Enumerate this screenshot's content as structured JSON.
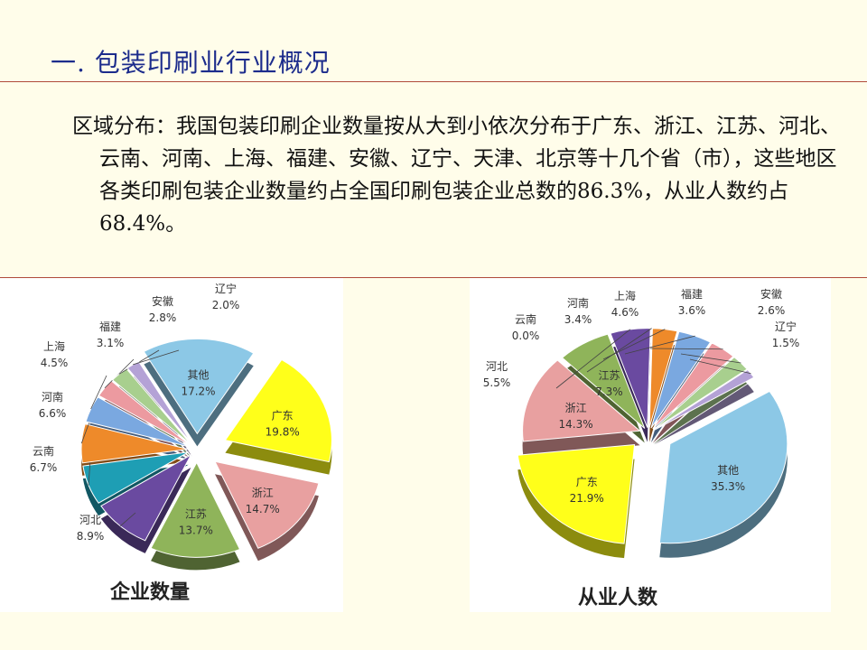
{
  "page": {
    "title": "一. 包装印刷业行业概况",
    "paragraph": "区域分布：我国包装印刷企业数量按从大到小依次分布于广东、浙江、江苏、河北、云南、河南、上海、福建、安徽、辽宁、天津、北京等十几个省（市），这些地区各类印刷包装企业数量约占全国印刷包装企业总数的86.3%，从业人数约占68.4%。"
  },
  "chart_data": [
    {
      "type": "pie",
      "title": "企业数量",
      "slices": [
        {
          "label": "其他",
          "value": 17.2,
          "display": "17.2%",
          "color": "#8cc8e6"
        },
        {
          "label": "广东",
          "value": 19.8,
          "display": "19.8%",
          "color": "#ffff1a"
        },
        {
          "label": "浙江",
          "value": 14.7,
          "display": "14.7%",
          "color": "#e8a0a0"
        },
        {
          "label": "江苏",
          "value": 13.7,
          "display": "13.7%",
          "color": "#8fb45a"
        },
        {
          "label": "河北",
          "value": 8.9,
          "display": "8.9%",
          "color": "#6a4aa0"
        },
        {
          "label": "云南",
          "value": 6.7,
          "display": "6.7%",
          "color": "#1e9eb4"
        },
        {
          "label": "河南",
          "value": 6.6,
          "display": "6.6%",
          "color": "#ee8a2a"
        },
        {
          "label": "上海",
          "value": 4.5,
          "display": "4.5%",
          "color": "#7aa8e0"
        },
        {
          "label": "福建",
          "value": 3.1,
          "display": "3.1%",
          "color": "#ec9aa0"
        },
        {
          "label": "安徽",
          "value": 2.8,
          "display": "2.8%",
          "color": "#a8cf8e"
        },
        {
          "label": "辽宁",
          "value": 2.0,
          "display": "2.0%",
          "color": "#b4a2d6"
        }
      ]
    },
    {
      "type": "pie",
      "title": "从业人数",
      "slices": [
        {
          "label": "其他",
          "value": 35.3,
          "display": "35.3%",
          "color": "#8cc8e6"
        },
        {
          "label": "广东",
          "value": 21.9,
          "display": "21.9%",
          "color": "#ffff1a"
        },
        {
          "label": "浙江",
          "value": 14.3,
          "display": "14.3%",
          "color": "#e8a0a0"
        },
        {
          "label": "江苏",
          "value": 7.3,
          "display": "7.3%",
          "color": "#8fb45a"
        },
        {
          "label": "河北",
          "value": 5.5,
          "display": "5.5%",
          "color": "#6a4aa0"
        },
        {
          "label": "云南",
          "value": 0.0,
          "display": "0.0%",
          "color": "#1e9eb4"
        },
        {
          "label": "河南",
          "value": 3.4,
          "display": "3.4%",
          "color": "#ee8a2a"
        },
        {
          "label": "上海",
          "value": 4.6,
          "display": "4.6%",
          "color": "#7aa8e0"
        },
        {
          "label": "福建",
          "value": 3.6,
          "display": "3.6%",
          "color": "#ec9aa0"
        },
        {
          "label": "安徽",
          "value": 2.6,
          "display": "2.6%",
          "color": "#a8cf8e"
        },
        {
          "label": "辽宁",
          "value": 1.5,
          "display": "1.5%",
          "color": "#b4a2d6"
        }
      ]
    }
  ]
}
